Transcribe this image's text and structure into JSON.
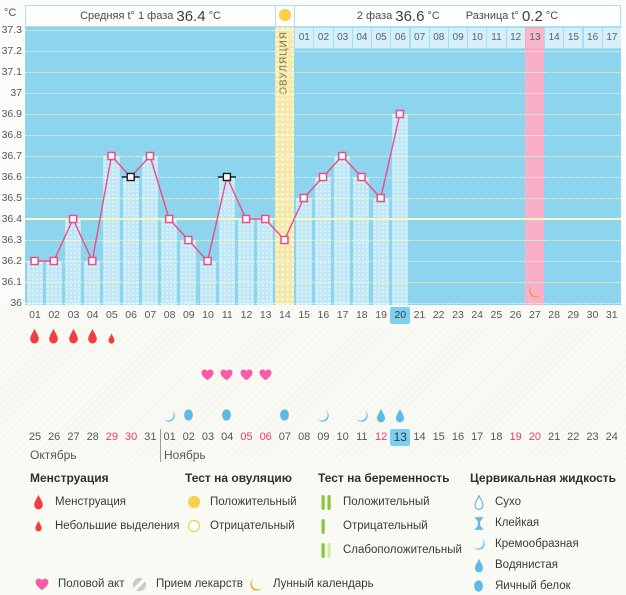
{
  "header": {
    "unit": "°C",
    "phase1_label": "Средняя t° 1 фаза",
    "phase1_value": "36.4",
    "phase1_unit": "°C",
    "phase2_label": "2 фаза",
    "phase2_value": "36.6",
    "phase2_unit": "°C",
    "diff_label": "Разница t°",
    "diff_value": "0.2",
    "diff_unit": "°C"
  },
  "chart_data": {
    "type": "line",
    "ylabel": "°C",
    "ylim": [
      36,
      37.3
    ],
    "ytick_step": 0.1,
    "y_ticks": [
      "37.3",
      "37.2",
      "37.1",
      "37",
      "36.9",
      "36.8",
      "36.7",
      "36.6",
      "36.5",
      "36.4",
      "36.3",
      "36.2",
      "36.1",
      "36"
    ],
    "day_labels": [
      "01",
      "02",
      "03",
      "04",
      "05",
      "06",
      "07",
      "08",
      "09",
      "10",
      "11",
      "12",
      "13",
      "14",
      "15",
      "16",
      "17",
      "18",
      "19",
      "20",
      "21",
      "22",
      "23",
      "24",
      "25",
      "26",
      "27",
      "28",
      "29",
      "30",
      "31"
    ],
    "temperatures": [
      {
        "day": 1,
        "t": 36.2
      },
      {
        "day": 2,
        "t": 36.2
      },
      {
        "day": 3,
        "t": 36.4
      },
      {
        "day": 4,
        "t": 36.2
      },
      {
        "day": 5,
        "t": 36.7
      },
      {
        "day": 6,
        "t": 36.6,
        "disturbed": true
      },
      {
        "day": 7,
        "t": 36.7
      },
      {
        "day": 8,
        "t": 36.4
      },
      {
        "day": 9,
        "t": 36.3
      },
      {
        "day": 10,
        "t": 36.2
      },
      {
        "day": 11,
        "t": 36.6,
        "disturbed": true
      },
      {
        "day": 12,
        "t": 36.4
      },
      {
        "day": 13,
        "t": 36.4
      },
      {
        "day": 14,
        "t": 36.3
      },
      {
        "day": 15,
        "t": 36.5
      },
      {
        "day": 16,
        "t": 36.6
      },
      {
        "day": 17,
        "t": 36.7
      },
      {
        "day": 18,
        "t": 36.6
      },
      {
        "day": 19,
        "t": 36.5
      },
      {
        "day": 20,
        "t": 36.9
      }
    ],
    "coverline": 36.4,
    "ovulation_day": 14,
    "ovulation_label": "ОВУЛЯЦИЯ",
    "lunar_day": 27,
    "current_day": 20,
    "phase2_day_labels": [
      "01",
      "02",
      "03",
      "04",
      "05",
      "06",
      "07",
      "08",
      "09",
      "10",
      "11",
      "12",
      "13",
      "14",
      "15",
      "16",
      "17"
    ],
    "phase2_highlight": "13",
    "grid": "dotted-white",
    "legend_position": "bottom"
  },
  "events": {
    "menstruation": [
      {
        "day": 1,
        "size": "big"
      },
      {
        "day": 2,
        "size": "big"
      },
      {
        "day": 3,
        "size": "big"
      },
      {
        "day": 4,
        "size": "big"
      },
      {
        "day": 5,
        "size": "small"
      }
    ],
    "intercourse_days": [
      10,
      11,
      12,
      13
    ],
    "cervical_fluid": [
      {
        "day": 8,
        "type": "drop-creamy"
      },
      {
        "day": 9,
        "type": "drop-eggwhite"
      },
      {
        "day": 11,
        "type": "drop-eggwhite"
      },
      {
        "day": 14,
        "type": "drop-eggwhite"
      },
      {
        "day": 16,
        "type": "drop-creamy"
      },
      {
        "day": 18,
        "type": "drop-creamy"
      },
      {
        "day": 19,
        "type": "drop-watery"
      },
      {
        "day": 20,
        "type": "drop-watery"
      }
    ],
    "ovulation_test_positive_day": 14,
    "lunar_event_day": 27
  },
  "calendar": {
    "october_label": "Октябрь",
    "november_label": "Ноябрь",
    "separator_after_index": 7,
    "dates": [
      {
        "d": "25"
      },
      {
        "d": "26"
      },
      {
        "d": "27"
      },
      {
        "d": "28"
      },
      {
        "d": "29",
        "red": true
      },
      {
        "d": "30",
        "red": true
      },
      {
        "d": "31"
      },
      {
        "d": "01"
      },
      {
        "d": "02"
      },
      {
        "d": "03"
      },
      {
        "d": "04"
      },
      {
        "d": "05",
        "red": true
      },
      {
        "d": "06",
        "red": true
      },
      {
        "d": "07"
      },
      {
        "d": "08"
      },
      {
        "d": "09"
      },
      {
        "d": "10"
      },
      {
        "d": "11"
      },
      {
        "d": "12",
        "red": true
      },
      {
        "d": "13",
        "today": true
      },
      {
        "d": "14"
      },
      {
        "d": "15"
      },
      {
        "d": "16"
      },
      {
        "d": "17"
      },
      {
        "d": "18"
      },
      {
        "d": "19",
        "red": true
      },
      {
        "d": "20",
        "red": true
      },
      {
        "d": "21"
      },
      {
        "d": "22"
      },
      {
        "d": "23"
      },
      {
        "d": "24"
      }
    ]
  },
  "legend": {
    "sections": [
      {
        "title": "Менструация",
        "items": [
          {
            "icon": "drop",
            "label": "Менструация"
          },
          {
            "icon": "drop-small",
            "label": "Небольшие выделения"
          }
        ]
      },
      {
        "title": "Тест на овуляцию",
        "items": [
          {
            "icon": "circle-filled",
            "label": "Положительный"
          },
          {
            "icon": "circle-outline",
            "label": "Отрицательный"
          }
        ]
      },
      {
        "title": "Тест на беременность",
        "items": [
          {
            "icon": "bars-two",
            "label": "Положительный"
          },
          {
            "icon": "bar-one",
            "label": "Отрицательный"
          },
          {
            "icon": "bars-weak",
            "label": "Слабоположительный"
          }
        ]
      },
      {
        "title": "Цервикальная жидкость",
        "items": [
          {
            "icon": "drop-dry",
            "label": "Сухо"
          },
          {
            "icon": "drop-sticky",
            "label": "Клейкая"
          },
          {
            "icon": "drop-creamy",
            "label": "Кремообразная"
          },
          {
            "icon": "drop-watery",
            "label": "Водянистая"
          },
          {
            "icon": "drop-eggwhite",
            "label": "Яичный белок"
          }
        ]
      }
    ],
    "footer_items": [
      {
        "icon": "heart",
        "label": "Половой акт"
      },
      {
        "icon": "pill",
        "label": "Прием лекарств"
      },
      {
        "icon": "moon",
        "label": "Лунный календарь"
      }
    ]
  },
  "colors": {
    "chart_bg": "#8DD4EF",
    "column": "rgba(255,255,255,0.45)",
    "ovulation_band": "#F3E8A6",
    "lunar_band": "#F9AFC8",
    "coverline": "#FBF7C0",
    "line": "#EE4B86",
    "disturbed_marker": "#1b1b1b",
    "cell_highlight": "#F8B7CA",
    "day_highlight": "#7FD0F0",
    "weekend_red": "#F1386B",
    "menstruation": "#F03E45",
    "heart": "#F95BA8",
    "cervical": "#5FB9E7",
    "ovulation_positive": "#F8D04B",
    "ovulation_negative_ring": "#F0D568",
    "pregnancy_bar": "#8CC63F",
    "pregnancy_bar_weak": "#D3E8AC",
    "moon": "#F49B20",
    "pill": "#CACACA"
  }
}
